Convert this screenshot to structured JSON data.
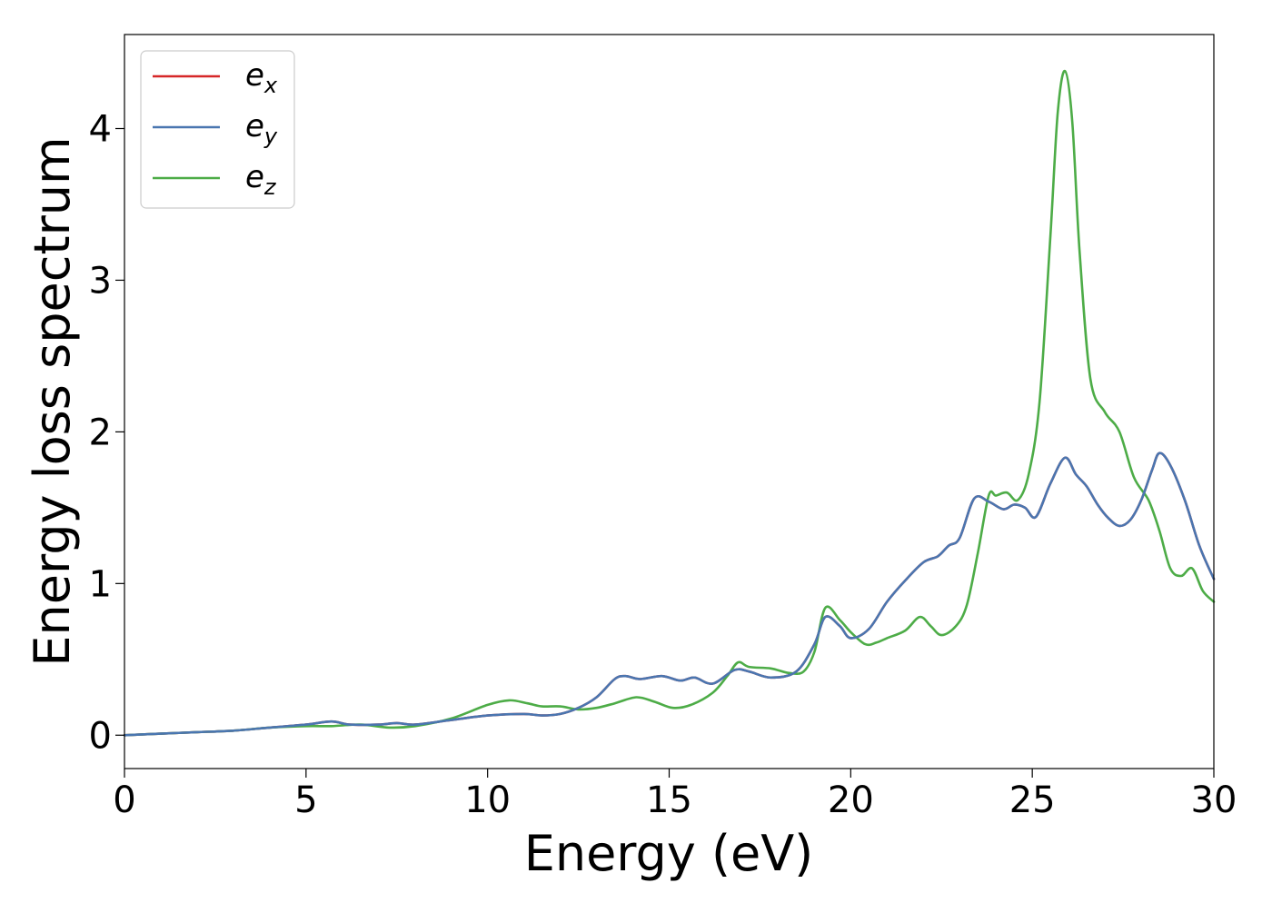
{
  "chart_data": {
    "type": "line",
    "xlabel": "Energy (eV)",
    "ylabel": "Energy loss spectrum",
    "xlim": [
      0,
      30
    ],
    "ylim": [
      -0.22,
      4.62
    ],
    "xticks": [
      0,
      5,
      10,
      15,
      20,
      25,
      30
    ],
    "yticks": [
      0,
      1,
      2,
      3,
      4
    ],
    "grid": false,
    "legend_position": "top-left",
    "series": [
      {
        "name": "e",
        "subscript": "x",
        "color": "#d62728",
        "x": [
          0,
          1,
          2,
          3,
          4,
          5,
          5.7,
          6.2,
          7,
          7.5,
          8,
          9,
          10,
          11,
          11.5,
          12,
          12.5,
          13,
          13.5,
          13.8,
          14.2,
          14.8,
          15.3,
          15.7,
          16.2,
          16.8,
          17.2,
          17.8,
          18.5,
          19,
          19.3,
          19.7,
          20,
          20.5,
          21,
          21.5,
          22,
          22.4,
          22.7,
          23,
          23.4,
          23.8,
          24.2,
          24.5,
          24.8,
          25.1,
          25.5,
          25.9,
          26.2,
          26.5,
          26.8,
          27.1,
          27.4,
          27.7,
          28,
          28.3,
          28.5,
          28.8,
          29.2,
          29.6,
          30
        ],
        "y": [
          0,
          0.01,
          0.02,
          0.03,
          0.05,
          0.07,
          0.09,
          0.07,
          0.07,
          0.08,
          0.07,
          0.1,
          0.13,
          0.14,
          0.13,
          0.14,
          0.18,
          0.25,
          0.37,
          0.39,
          0.37,
          0.39,
          0.36,
          0.38,
          0.34,
          0.43,
          0.42,
          0.38,
          0.42,
          0.6,
          0.78,
          0.72,
          0.64,
          0.7,
          0.88,
          1.02,
          1.14,
          1.18,
          1.25,
          1.3,
          1.56,
          1.54,
          1.49,
          1.52,
          1.5,
          1.44,
          1.66,
          1.83,
          1.72,
          1.64,
          1.52,
          1.43,
          1.38,
          1.42,
          1.55,
          1.75,
          1.86,
          1.78,
          1.55,
          1.25,
          1.03
        ]
      },
      {
        "name": "e",
        "subscript": "y",
        "color": "#4a76b0",
        "x": [
          0,
          1,
          2,
          3,
          4,
          5,
          5.7,
          6.2,
          7,
          7.5,
          8,
          9,
          10,
          11,
          11.5,
          12,
          12.5,
          13,
          13.5,
          13.8,
          14.2,
          14.8,
          15.3,
          15.7,
          16.2,
          16.8,
          17.2,
          17.8,
          18.5,
          19,
          19.3,
          19.7,
          20,
          20.5,
          21,
          21.5,
          22,
          22.4,
          22.7,
          23,
          23.4,
          23.8,
          24.2,
          24.5,
          24.8,
          25.1,
          25.5,
          25.9,
          26.2,
          26.5,
          26.8,
          27.1,
          27.4,
          27.7,
          28,
          28.3,
          28.5,
          28.8,
          29.2,
          29.6,
          30
        ],
        "y": [
          0,
          0.01,
          0.02,
          0.03,
          0.05,
          0.07,
          0.09,
          0.07,
          0.07,
          0.08,
          0.07,
          0.1,
          0.13,
          0.14,
          0.13,
          0.14,
          0.18,
          0.25,
          0.37,
          0.39,
          0.37,
          0.39,
          0.36,
          0.38,
          0.34,
          0.43,
          0.42,
          0.38,
          0.42,
          0.6,
          0.78,
          0.72,
          0.64,
          0.7,
          0.88,
          1.02,
          1.14,
          1.18,
          1.25,
          1.3,
          1.56,
          1.54,
          1.49,
          1.52,
          1.5,
          1.44,
          1.66,
          1.83,
          1.72,
          1.64,
          1.52,
          1.43,
          1.38,
          1.42,
          1.55,
          1.75,
          1.86,
          1.78,
          1.55,
          1.25,
          1.03
        ]
      },
      {
        "name": "e",
        "subscript": "z",
        "color": "#4dac47",
        "x": [
          0,
          1,
          2,
          3,
          4,
          5,
          5.7,
          6.5,
          7.3,
          8,
          9,
          10,
          10.6,
          11.1,
          11.5,
          12,
          12.5,
          13,
          13.5,
          14.1,
          14.6,
          15.1,
          15.6,
          16.2,
          16.6,
          16.9,
          17.2,
          17.8,
          18.3,
          18.7,
          19,
          19.3,
          19.7,
          20,
          20.4,
          20.7,
          21,
          21.5,
          21.9,
          22.2,
          22.5,
          22.9,
          23.2,
          23.5,
          23.8,
          24,
          24.3,
          24.6,
          24.9,
          25.2,
          25.5,
          25.7,
          25.9,
          26.1,
          26.3,
          26.6,
          27,
          27.4,
          27.8,
          28.2,
          28.5,
          28.8,
          29.1,
          29.4,
          29.7,
          30
        ],
        "y": [
          0,
          0.01,
          0.02,
          0.03,
          0.05,
          0.06,
          0.06,
          0.07,
          0.05,
          0.06,
          0.11,
          0.2,
          0.23,
          0.21,
          0.19,
          0.19,
          0.17,
          0.18,
          0.21,
          0.25,
          0.22,
          0.18,
          0.2,
          0.28,
          0.39,
          0.48,
          0.45,
          0.44,
          0.41,
          0.42,
          0.55,
          0.84,
          0.76,
          0.68,
          0.6,
          0.61,
          0.64,
          0.69,
          0.78,
          0.72,
          0.66,
          0.72,
          0.86,
          1.2,
          1.58,
          1.58,
          1.6,
          1.55,
          1.72,
          2.2,
          3.3,
          4.1,
          4.38,
          4.05,
          3.2,
          2.35,
          2.13,
          2.0,
          1.7,
          1.55,
          1.35,
          1.1,
          1.05,
          1.1,
          0.95,
          0.88
        ]
      }
    ]
  }
}
